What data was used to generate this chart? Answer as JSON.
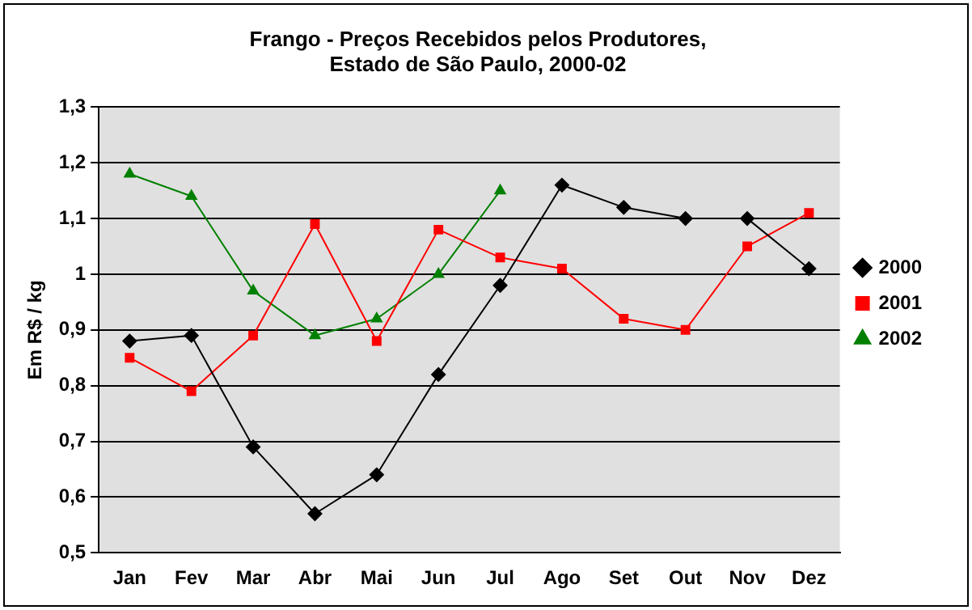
{
  "chart_data": {
    "type": "line",
    "title": "Frango - Preços Recebidos pelos Produtores,\nEstado de São Paulo, 2000-02",
    "ylabel": "Em R$ / kg",
    "categories": [
      "Jan",
      "Fev",
      "Mar",
      "Abr",
      "Mai",
      "Jun",
      "Jul",
      "Ago",
      "Set",
      "Out",
      "Nov",
      "Dez"
    ],
    "series": [
      {
        "name": "2000",
        "color": "#000000",
        "marker": "diamond",
        "values": [
          0.88,
          0.89,
          0.69,
          0.57,
          0.64,
          0.82,
          0.98,
          1.16,
          1.12,
          1.1,
          1.1,
          1.01
        ]
      },
      {
        "name": "2001",
        "color": "#ff0000",
        "marker": "square",
        "values": [
          0.85,
          0.79,
          0.89,
          1.09,
          0.88,
          1.08,
          1.03,
          1.01,
          0.92,
          0.9,
          1.05,
          1.11
        ]
      },
      {
        "name": "2002",
        "color": "#008000",
        "marker": "triangle",
        "values": [
          1.18,
          1.14,
          0.97,
          0.89,
          0.92,
          1.0,
          1.15,
          null,
          null,
          null,
          null,
          null
        ]
      }
    ],
    "ylim": [
      0.5,
      1.3
    ],
    "yticks": [
      {
        "value": 0.5,
        "label": "0,5"
      },
      {
        "value": 0.6,
        "label": "0,6"
      },
      {
        "value": 0.7,
        "label": "0,7"
      },
      {
        "value": 0.8,
        "label": "0,8"
      },
      {
        "value": 0.9,
        "label": "0,9"
      },
      {
        "value": 1,
        "label": "1"
      },
      {
        "value": 1.1,
        "label": "1,1"
      },
      {
        "value": 1.2,
        "label": "1,2"
      },
      {
        "value": 1.3,
        "label": "1,3"
      }
    ],
    "grid": "y",
    "legend": "right",
    "line_style": "solid"
  }
}
